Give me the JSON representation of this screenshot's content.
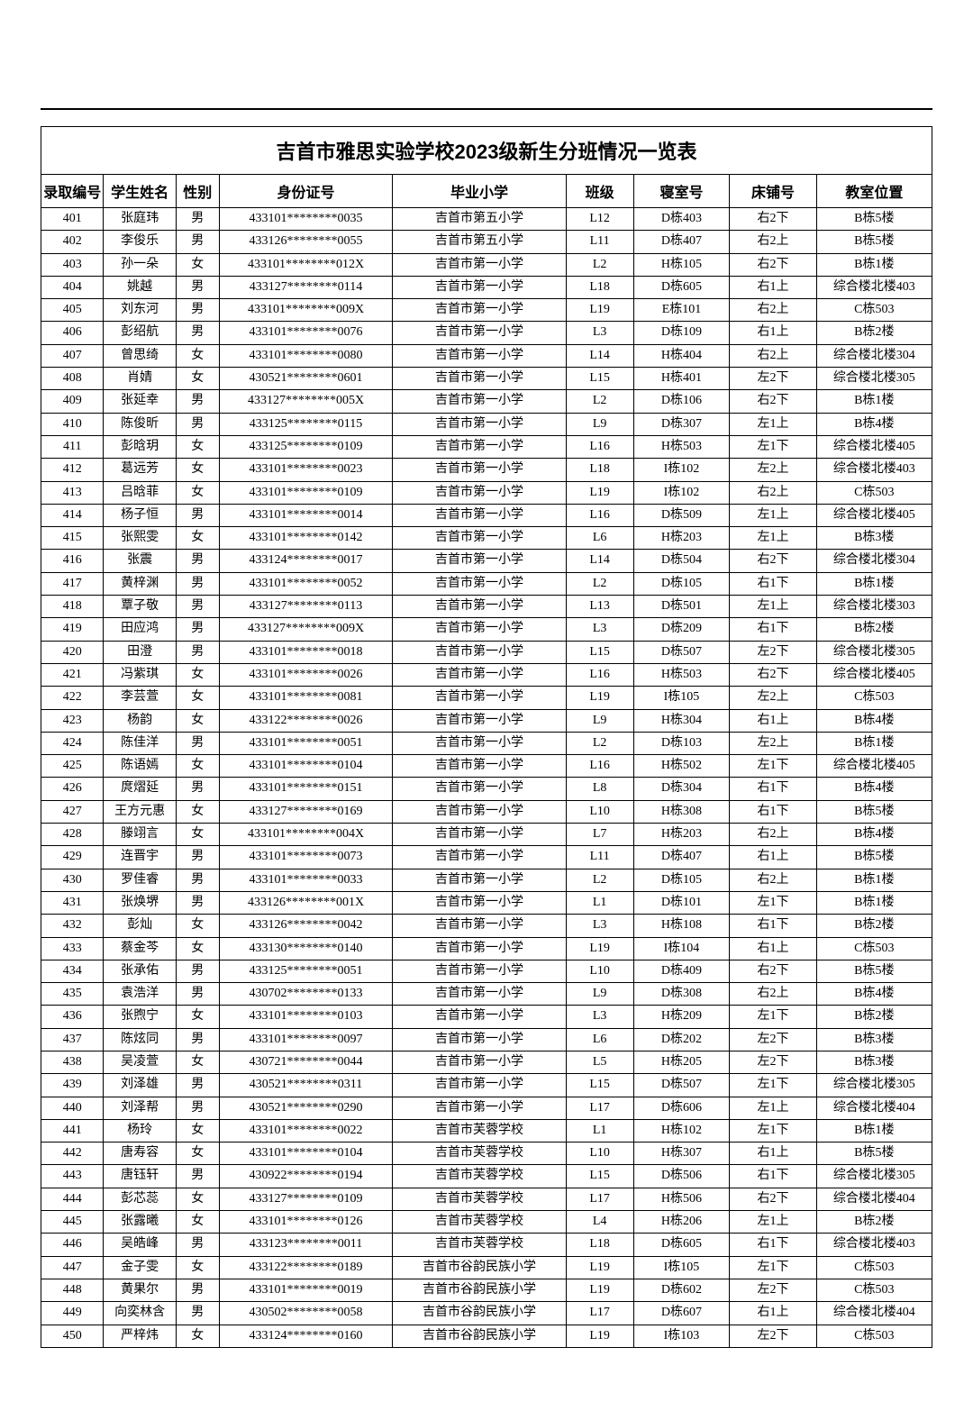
{
  "title": "吉首市雅思实验学校2023级新生分班情况一览表",
  "columns": [
    {
      "key": "id",
      "label": "录取编号",
      "width": "6.5%"
    },
    {
      "key": "name",
      "label": "学生姓名",
      "width": "7.5%"
    },
    {
      "key": "gender",
      "label": "性别",
      "width": "4.5%"
    },
    {
      "key": "idno",
      "label": "身份证号",
      "width": "18%"
    },
    {
      "key": "school",
      "label": "毕业小学",
      "width": "18%"
    },
    {
      "key": "class",
      "label": "班级",
      "width": "7%"
    },
    {
      "key": "dorm",
      "label": "寝室号",
      "width": "10%"
    },
    {
      "key": "bed",
      "label": "床铺号",
      "width": "9%"
    },
    {
      "key": "room",
      "label": "教室位置",
      "width": "12%"
    }
  ],
  "rows": [
    [
      "401",
      "张庭玮",
      "男",
      "433101********0035",
      "吉首市第五小学",
      "L12",
      "D栋403",
      "右2下",
      "B栋5楼"
    ],
    [
      "402",
      "李俊乐",
      "男",
      "433126********0055",
      "吉首市第五小学",
      "L11",
      "D栋407",
      "右2上",
      "B栋5楼"
    ],
    [
      "403",
      "孙一朵",
      "女",
      "433101********012X",
      "吉首市第一小学",
      "L2",
      "H栋105",
      "右2下",
      "B栋1楼"
    ],
    [
      "404",
      "姚越",
      "男",
      "433127********0114",
      "吉首市第一小学",
      "L18",
      "D栋605",
      "右1上",
      "综合楼北楼403"
    ],
    [
      "405",
      "刘东河",
      "男",
      "433101********009X",
      "吉首市第一小学",
      "L19",
      "E栋101",
      "右2上",
      "C栋503"
    ],
    [
      "406",
      "彭绍航",
      "男",
      "433101********0076",
      "吉首市第一小学",
      "L3",
      "D栋109",
      "右1上",
      "B栋2楼"
    ],
    [
      "407",
      "曾思绮",
      "女",
      "433101********0080",
      "吉首市第一小学",
      "L14",
      "H栋404",
      "右2上",
      "综合楼北楼304"
    ],
    [
      "408",
      "肖婧",
      "女",
      "430521********0601",
      "吉首市第一小学",
      "L15",
      "H栋401",
      "左2下",
      "综合楼北楼305"
    ],
    [
      "409",
      "张延幸",
      "男",
      "433127********005X",
      "吉首市第一小学",
      "L2",
      "D栋106",
      "右2下",
      "B栋1楼"
    ],
    [
      "410",
      "陈俊昕",
      "男",
      "433125********0115",
      "吉首市第一小学",
      "L9",
      "D栋307",
      "左1上",
      "B栋4楼"
    ],
    [
      "411",
      "彭晗玥",
      "女",
      "433125********0109",
      "吉首市第一小学",
      "L16",
      "H栋503",
      "左1下",
      "综合楼北楼405"
    ],
    [
      "412",
      "葛远芳",
      "女",
      "433101********0023",
      "吉首市第一小学",
      "L18",
      "I栋102",
      "左2上",
      "综合楼北楼403"
    ],
    [
      "413",
      "吕晗菲",
      "女",
      "433101********0109",
      "吉首市第一小学",
      "L19",
      "I栋102",
      "右2上",
      "C栋503"
    ],
    [
      "414",
      "杨子恒",
      "男",
      "433101********0014",
      "吉首市第一小学",
      "L16",
      "D栋509",
      "左1上",
      "综合楼北楼405"
    ],
    [
      "415",
      "张熙雯",
      "女",
      "433101********0142",
      "吉首市第一小学",
      "L6",
      "H栋203",
      "左1上",
      "B栋3楼"
    ],
    [
      "416",
      "张震",
      "男",
      "433124********0017",
      "吉首市第一小学",
      "L14",
      "D栋504",
      "右2下",
      "综合楼北楼304"
    ],
    [
      "417",
      "黄梓渊",
      "男",
      "433101********0052",
      "吉首市第一小学",
      "L2",
      "D栋105",
      "右1下",
      "B栋1楼"
    ],
    [
      "418",
      "覃子敬",
      "男",
      "433127********0113",
      "吉首市第一小学",
      "L13",
      "D栋501",
      "左1上",
      "综合楼北楼303"
    ],
    [
      "419",
      "田应鸿",
      "男",
      "433127********009X",
      "吉首市第一小学",
      "L3",
      "D栋209",
      "右1下",
      "B栋2楼"
    ],
    [
      "420",
      "田澄",
      "男",
      "433101********0018",
      "吉首市第一小学",
      "L15",
      "D栋507",
      "左2下",
      "综合楼北楼305"
    ],
    [
      "421",
      "冯紫琪",
      "女",
      "433101********0026",
      "吉首市第一小学",
      "L16",
      "H栋503",
      "右2下",
      "综合楼北楼405"
    ],
    [
      "422",
      "李芸萱",
      "女",
      "433101********0081",
      "吉首市第一小学",
      "L19",
      "I栋105",
      "左2上",
      "C栋503"
    ],
    [
      "423",
      "杨韵",
      "女",
      "433122********0026",
      "吉首市第一小学",
      "L9",
      "H栋304",
      "右1上",
      "B栋4楼"
    ],
    [
      "424",
      "陈佳洋",
      "男",
      "433101********0051",
      "吉首市第一小学",
      "L2",
      "D栋103",
      "左2上",
      "B栋1楼"
    ],
    [
      "425",
      "陈语嫣",
      "女",
      "433101********0104",
      "吉首市第一小学",
      "L16",
      "H栋502",
      "左1下",
      "综合楼北楼405"
    ],
    [
      "426",
      "庹熠延",
      "男",
      "433101********0151",
      "吉首市第一小学",
      "L8",
      "D栋304",
      "右1下",
      "B栋4楼"
    ],
    [
      "427",
      "王方元惠",
      "女",
      "433127********0169",
      "吉首市第一小学",
      "L10",
      "H栋308",
      "右1下",
      "B栋5楼"
    ],
    [
      "428",
      "滕翊言",
      "女",
      "433101********004X",
      "吉首市第一小学",
      "L7",
      "H栋203",
      "右2上",
      "B栋4楼"
    ],
    [
      "429",
      "连晋宇",
      "男",
      "433101********0073",
      "吉首市第一小学",
      "L11",
      "D栋407",
      "右1上",
      "B栋5楼"
    ],
    [
      "430",
      "罗佳睿",
      "男",
      "433101********0033",
      "吉首市第一小学",
      "L2",
      "D栋105",
      "右2上",
      "B栋1楼"
    ],
    [
      "431",
      "张焕堺",
      "男",
      "433126********001X",
      "吉首市第一小学",
      "L1",
      "D栋101",
      "左1下",
      "B栋1楼"
    ],
    [
      "432",
      "彭灿",
      "女",
      "433126********0042",
      "吉首市第一小学",
      "L3",
      "H栋108",
      "右1下",
      "B栋2楼"
    ],
    [
      "433",
      "蔡金芩",
      "女",
      "433130********0140",
      "吉首市第一小学",
      "L19",
      "I栋104",
      "右1上",
      "C栋503"
    ],
    [
      "434",
      "张承佑",
      "男",
      "433125********0051",
      "吉首市第一小学",
      "L10",
      "D栋409",
      "右2下",
      "B栋5楼"
    ],
    [
      "435",
      "袁浩洋",
      "男",
      "430702********0133",
      "吉首市第一小学",
      "L9",
      "D栋308",
      "右2上",
      "B栋4楼"
    ],
    [
      "436",
      "张煦宁",
      "女",
      "433101********0103",
      "吉首市第一小学",
      "L3",
      "H栋209",
      "左1下",
      "B栋2楼"
    ],
    [
      "437",
      "陈炫同",
      "男",
      "433101********0097",
      "吉首市第一小学",
      "L6",
      "D栋202",
      "左2下",
      "B栋3楼"
    ],
    [
      "438",
      "吴凌萱",
      "女",
      "430721********0044",
      "吉首市第一小学",
      "L5",
      "H栋205",
      "左2下",
      "B栋3楼"
    ],
    [
      "439",
      "刘泽雄",
      "男",
      "430521********0311",
      "吉首市第一小学",
      "L15",
      "D栋507",
      "左1下",
      "综合楼北楼305"
    ],
    [
      "440",
      "刘泽帮",
      "男",
      "430521********0290",
      "吉首市第一小学",
      "L17",
      "D栋606",
      "左1上",
      "综合楼北楼404"
    ],
    [
      "441",
      "杨玲",
      "女",
      "433101********0022",
      "吉首市芙蓉学校",
      "L1",
      "H栋102",
      "左1下",
      "B栋1楼"
    ],
    [
      "442",
      "唐寿容",
      "女",
      "433101********0104",
      "吉首市芙蓉学校",
      "L10",
      "H栋307",
      "右1上",
      "B栋5楼"
    ],
    [
      "443",
      "唐钰轩",
      "男",
      "430922********0194",
      "吉首市芙蓉学校",
      "L15",
      "D栋506",
      "右1下",
      "综合楼北楼305"
    ],
    [
      "444",
      "彭芯蕊",
      "女",
      "433127********0109",
      "吉首市芙蓉学校",
      "L17",
      "H栋506",
      "右2下",
      "综合楼北楼404"
    ],
    [
      "445",
      "张露曦",
      "女",
      "433101********0126",
      "吉首市芙蓉学校",
      "L4",
      "H栋206",
      "左1上",
      "B栋2楼"
    ],
    [
      "446",
      "吴皓峰",
      "男",
      "433123********0011",
      "吉首市芙蓉学校",
      "L18",
      "D栋605",
      "右1下",
      "综合楼北楼403"
    ],
    [
      "447",
      "金子雯",
      "女",
      "433122********0189",
      "吉首市谷韵民族小学",
      "L19",
      "I栋105",
      "左1下",
      "C栋503"
    ],
    [
      "448",
      "黄果尔",
      "男",
      "433101********0019",
      "吉首市谷韵民族小学",
      "L19",
      "D栋602",
      "左2下",
      "C栋503"
    ],
    [
      "449",
      "向奕林含",
      "男",
      "430502********0058",
      "吉首市谷韵民族小学",
      "L17",
      "D栋607",
      "右1上",
      "综合楼北楼404"
    ],
    [
      "450",
      "严梓炜",
      "女",
      "433124********0160",
      "吉首市谷韵民族小学",
      "L19",
      "I栋103",
      "左2下",
      "C栋503"
    ]
  ],
  "styles": {
    "page_bg": "#ffffff",
    "border_color": "#000000",
    "title_fontsize": 22,
    "header_fontsize": 16,
    "cell_fontsize": 14
  }
}
